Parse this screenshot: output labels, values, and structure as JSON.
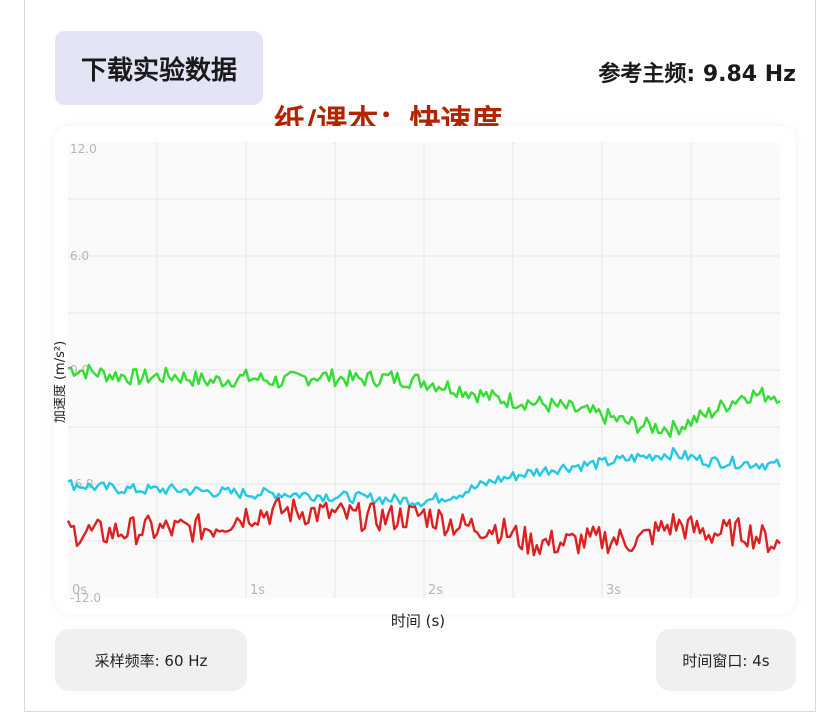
{
  "header": {
    "download_label": "下载实验数据",
    "frequency_label": "参考主频: 9.84 Hz"
  },
  "annotation": "纸/课本：快速度",
  "footer": {
    "sample_rate": "采样频率: 60 Hz",
    "time_window": "时间窗口: 4s"
  },
  "chart_data": {
    "type": "line",
    "title": "",
    "xlabel": "时间 (s)",
    "ylabel": "加速度 (m/s²)",
    "xlim": [
      0,
      4
    ],
    "ylim": [
      -12,
      12
    ],
    "yticks": [
      12,
      6,
      0,
      -6,
      -12
    ],
    "ytick_labels": [
      "12.0",
      "6.0",
      "0.0",
      "-6.0",
      "-12.0"
    ],
    "xticks": [
      0,
      1,
      2,
      3
    ],
    "xtick_labels": [
      "0s",
      "1s",
      "2s",
      "3s"
    ],
    "grid": true,
    "series": [
      {
        "color": "#33dd33",
        "x": [
          0,
          0.2,
          0.4,
          0.6,
          0.8,
          1.0,
          1.2,
          1.4,
          1.6,
          1.8,
          2.0,
          2.2,
          2.4,
          2.6,
          2.8,
          3.0,
          3.2,
          3.4,
          3.6,
          3.8,
          4.0
        ],
        "y": [
          0.1,
          -0.2,
          -0.4,
          -0.3,
          -0.6,
          -0.4,
          -0.6,
          -0.3,
          -0.5,
          -0.4,
          -0.6,
          -1.0,
          -1.5,
          -1.7,
          -2.0,
          -2.4,
          -2.9,
          -3.1,
          -2.3,
          -1.3,
          -1.3
        ]
      },
      {
        "color": "#22c8e8",
        "x": [
          0,
          0.2,
          0.4,
          0.6,
          0.8,
          1.0,
          1.2,
          1.4,
          1.6,
          1.8,
          2.0,
          2.2,
          2.4,
          2.6,
          2.8,
          3.0,
          3.2,
          3.4,
          3.6,
          3.8,
          4.0
        ],
        "y": [
          -6.0,
          -6.2,
          -6.3,
          -6.3,
          -6.4,
          -6.5,
          -6.5,
          -6.6,
          -6.7,
          -6.8,
          -6.9,
          -6.5,
          -5.8,
          -5.4,
          -5.1,
          -4.9,
          -4.6,
          -4.4,
          -4.8,
          -4.9,
          -5.0
        ]
      },
      {
        "color": "#dd2020",
        "x": [
          0,
          0.2,
          0.4,
          0.6,
          0.8,
          1.0,
          1.2,
          1.4,
          1.6,
          1.8,
          2.0,
          2.2,
          2.4,
          2.6,
          2.8,
          3.0,
          3.2,
          3.4,
          3.6,
          3.8,
          4.0
        ],
        "y": [
          -8.5,
          -8.6,
          -8.4,
          -8.4,
          -8.3,
          -7.6,
          -7.4,
          -7.5,
          -7.7,
          -7.8,
          -7.6,
          -8.2,
          -8.3,
          -9.1,
          -9.1,
          -8.9,
          -9.0,
          -8.1,
          -8.6,
          -8.5,
          -9.2
        ]
      }
    ]
  }
}
